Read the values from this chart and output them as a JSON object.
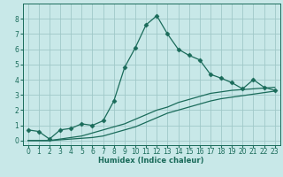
{
  "xlabel": "Humidex (Indice chaleur)",
  "ylabel": "",
  "background_color": "#c8e8e8",
  "grid_color": "#a0c8c8",
  "line_color": "#1a6b5a",
  "xlim": [
    -0.5,
    23.5
  ],
  "ylim": [
    -0.3,
    9.0
  ],
  "xticks": [
    0,
    1,
    2,
    3,
    4,
    5,
    6,
    7,
    8,
    9,
    10,
    11,
    12,
    13,
    14,
    15,
    16,
    17,
    18,
    19,
    20,
    21,
    22,
    23
  ],
  "yticks": [
    0,
    1,
    2,
    3,
    4,
    5,
    6,
    7,
    8
  ],
  "series1_x": [
    0,
    1,
    2,
    3,
    4,
    5,
    6,
    7,
    8,
    9,
    10,
    11,
    12,
    13,
    14,
    15,
    16,
    17,
    18,
    19,
    20,
    21,
    22,
    23
  ],
  "series1_y": [
    0.7,
    0.6,
    0.1,
    0.7,
    0.8,
    1.1,
    1.0,
    1.3,
    2.6,
    4.8,
    6.1,
    7.6,
    8.2,
    7.0,
    6.0,
    5.6,
    5.3,
    4.35,
    4.1,
    3.8,
    3.4,
    4.0,
    3.5,
    3.3
  ],
  "series2_x": [
    0,
    1,
    2,
    3,
    4,
    5,
    6,
    7,
    8,
    9,
    10,
    11,
    12,
    13,
    14,
    15,
    16,
    17,
    18,
    19,
    20,
    21,
    22,
    23
  ],
  "series2_y": [
    0.0,
    0.0,
    0.0,
    0.1,
    0.2,
    0.3,
    0.5,
    0.7,
    0.9,
    1.1,
    1.4,
    1.7,
    2.0,
    2.2,
    2.5,
    2.7,
    2.9,
    3.1,
    3.2,
    3.3,
    3.35,
    3.4,
    3.45,
    3.5
  ],
  "series3_x": [
    0,
    1,
    2,
    3,
    4,
    5,
    6,
    7,
    8,
    9,
    10,
    11,
    12,
    13,
    14,
    15,
    16,
    17,
    18,
    19,
    20,
    21,
    22,
    23
  ],
  "series3_y": [
    0.0,
    0.0,
    0.0,
    0.05,
    0.1,
    0.15,
    0.2,
    0.3,
    0.5,
    0.7,
    0.9,
    1.2,
    1.5,
    1.8,
    2.0,
    2.2,
    2.4,
    2.6,
    2.75,
    2.85,
    2.95,
    3.05,
    3.15,
    3.25
  ],
  "xlabel_fontsize": 6,
  "tick_fontsize": 5.5,
  "marker_size": 2.5
}
